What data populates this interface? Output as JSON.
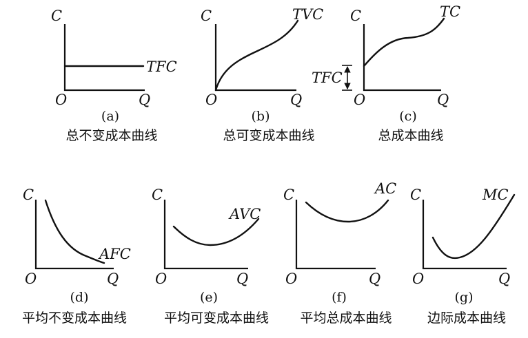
{
  "panels": [
    {
      "id": "a",
      "letter": "(a)",
      "caption": "总不变成本曲线",
      "y_axis": "C",
      "x_axis": "Q",
      "origin": "O",
      "curve_label": "TFC"
    },
    {
      "id": "b",
      "letter": "(b)",
      "caption": "总可变成本曲线",
      "y_axis": "C",
      "x_axis": "Q",
      "origin": "O",
      "curve_label": "TVC"
    },
    {
      "id": "c",
      "letter": "(c)",
      "caption": "总成本曲线",
      "y_axis": "C",
      "x_axis": "Q",
      "origin": "O",
      "curve_label": "TC",
      "bracket_label": "TFC"
    },
    {
      "id": "d",
      "letter": "(d)",
      "caption": "平均不变成本曲线",
      "y_axis": "C",
      "x_axis": "Q",
      "origin": "O",
      "curve_label": "AFC"
    },
    {
      "id": "e",
      "letter": "(e)",
      "caption": "平均可变成本曲线",
      "y_axis": "C",
      "x_axis": "Q",
      "origin": "O",
      "curve_label": "AVC"
    },
    {
      "id": "f",
      "letter": "(f)",
      "caption": "平均总成本曲线",
      "y_axis": "C",
      "x_axis": "Q",
      "origin": "O",
      "curve_label": "AC"
    },
    {
      "id": "g",
      "letter": "(g)",
      "caption": "边际成本曲线",
      "y_axis": "C",
      "x_axis": "Q",
      "origin": "O",
      "curve_label": "MC"
    }
  ]
}
